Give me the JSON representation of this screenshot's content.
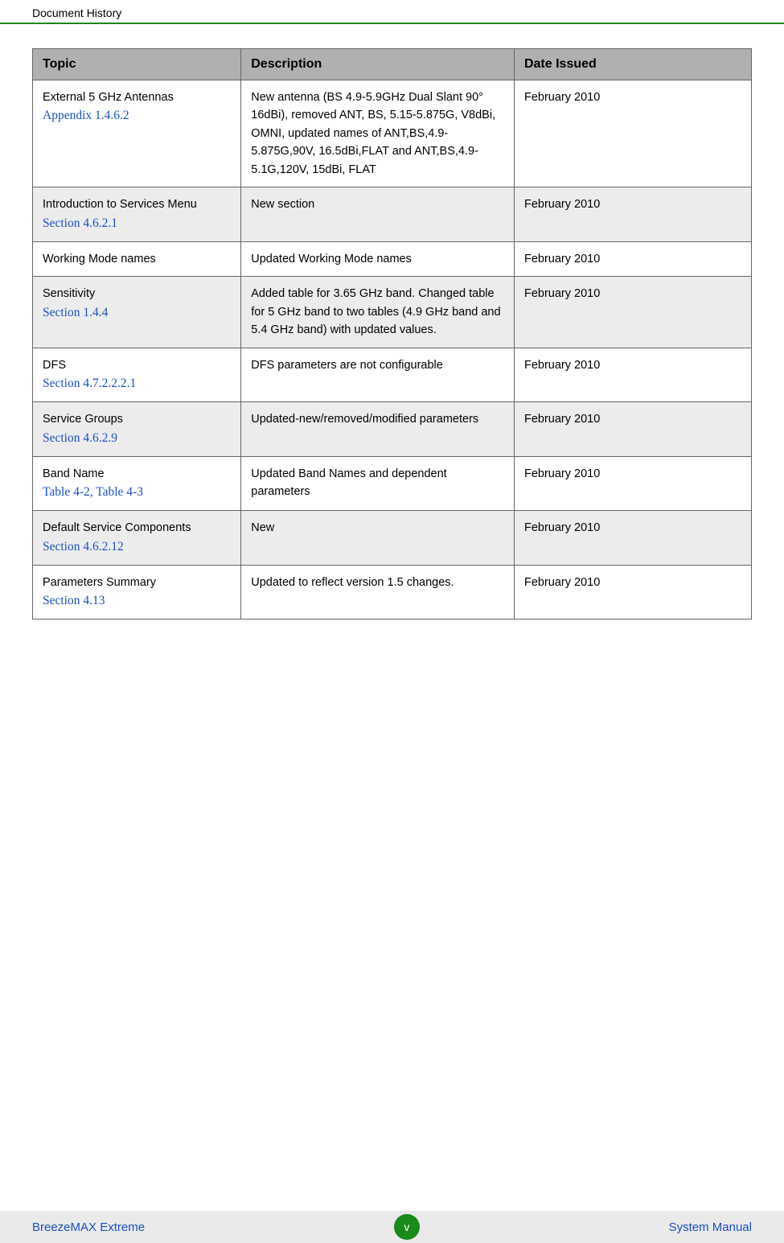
{
  "header": {
    "title": "Document History"
  },
  "table": {
    "columns": [
      "Topic",
      "Description",
      "Date Issued"
    ],
    "header_bg": "#b0b0b0",
    "border_color": "#666666",
    "row_stripe_even": "#ececec",
    "row_stripe_odd": "#ffffff",
    "link_color": "#1a4fc4",
    "rows": [
      {
        "topic_main": "External 5 GHz Antennas",
        "topic_link": "Appendix 1.4.6.2",
        "description": "New antenna (BS 4.9-5.9GHz Dual Slant 90° 16dBi), removed ANT, BS, 5.15-5.875G, V8dBi, OMNI, updated names of ANT,BS,4.9-5.875G,90V, 16.5dBi,FLAT and ANT,BS,4.9-5.1G,120V, 15dBi, FLAT",
        "date": "February 2010"
      },
      {
        "topic_main": "Introduction to Services Menu",
        "topic_link": "Section 4.6.2.1",
        "description": "New section",
        "date": "February 2010"
      },
      {
        "topic_main": "Working Mode names",
        "topic_link": "",
        "description": "Updated Working Mode names",
        "date": "February 2010"
      },
      {
        "topic_main": "Sensitivity",
        "topic_link": "Section 1.4.4",
        "description": "Added table for 3.65 GHz band. Changed table for 5 GHz band to two tables (4.9 GHz band and 5.4 GHz band) with updated values.",
        "date": "February 2010"
      },
      {
        "topic_main": "DFS",
        "topic_link": "Section 4.7.2.2.2.1",
        "description": "DFS parameters are not configurable",
        "date": "February 2010"
      },
      {
        "topic_main": "Service Groups",
        "topic_link": "Section 4.6.2.9",
        "description": "Updated-new/removed/modified parameters",
        "date": "February 2010"
      },
      {
        "topic_main": "Band Name",
        "topic_link": "Table 4-2, Table 4-3",
        "description": "Updated Band Names and dependent parameters",
        "date": "February 2010"
      },
      {
        "topic_main": "Default Service Components",
        "topic_link": "Section 4.6.2.12",
        "description": "New",
        "date": "February 2010"
      },
      {
        "topic_main": "Parameters Summary",
        "topic_link": "Section 4.13",
        "description": "Updated to reflect version 1.5 changes.",
        "date": "February 2010"
      }
    ]
  },
  "footer": {
    "left": "BreezeMAX Extreme",
    "page": "v",
    "right": "System Manual",
    "badge_bg": "#1a8a1a",
    "bar_bg": "#eaeaea"
  }
}
